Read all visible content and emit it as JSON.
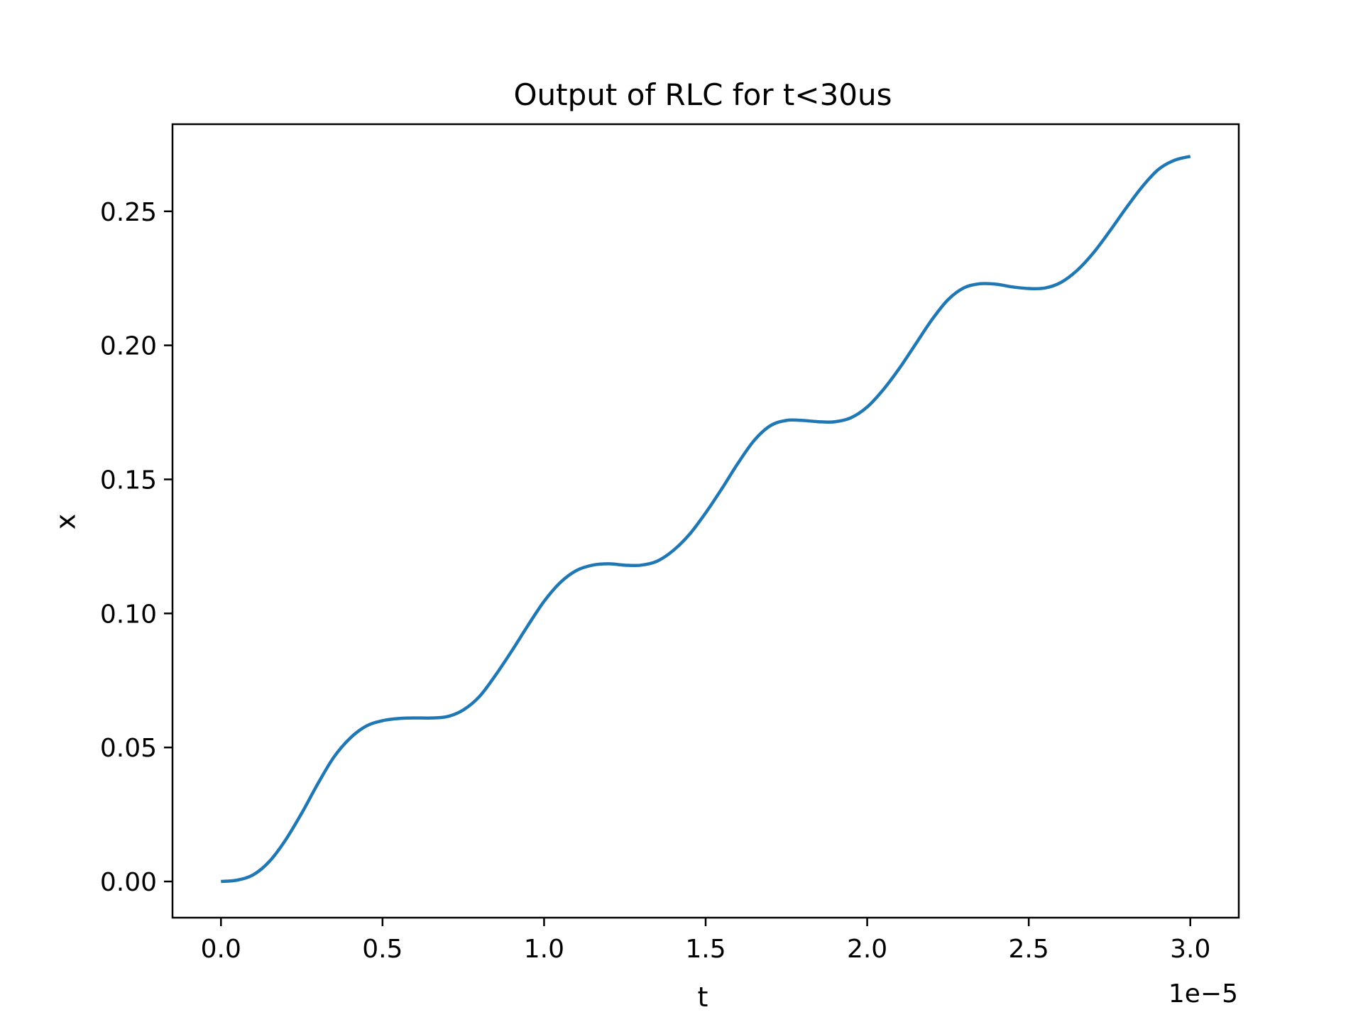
{
  "chart_data": {
    "type": "line",
    "title": "Output of RLC for t<30us",
    "xlabel": "t",
    "ylabel": "x",
    "x_offset_label": "1e−5",
    "xlim": [
      -0.15,
      3.15
    ],
    "ylim": [
      -0.0135,
      0.2825
    ],
    "grid": false,
    "legend": "none",
    "x_ticks": [
      {
        "value": 0.0,
        "label": "0.0"
      },
      {
        "value": 0.5,
        "label": "0.5"
      },
      {
        "value": 1.0,
        "label": "1.0"
      },
      {
        "value": 1.5,
        "label": "1.5"
      },
      {
        "value": 2.0,
        "label": "2.0"
      },
      {
        "value": 2.5,
        "label": "2.5"
      },
      {
        "value": 3.0,
        "label": "3.0"
      }
    ],
    "y_ticks": [
      {
        "value": 0.0,
        "label": "0.00"
      },
      {
        "value": 0.05,
        "label": "0.05"
      },
      {
        "value": 0.1,
        "label": "0.10"
      },
      {
        "value": 0.15,
        "label": "0.15"
      },
      {
        "value": 0.2,
        "label": "0.20"
      },
      {
        "value": 0.25,
        "label": "0.25"
      }
    ],
    "series": [
      {
        "color": "#1f77b4",
        "x": [
          0.0,
          0.05,
          0.1,
          0.15,
          0.2,
          0.25,
          0.3,
          0.35,
          0.4,
          0.45,
          0.5,
          0.55,
          0.6,
          0.65,
          0.7,
          0.75,
          0.8,
          0.85,
          0.9,
          0.95,
          1.0,
          1.05,
          1.1,
          1.15,
          1.2,
          1.25,
          1.3,
          1.35,
          1.4,
          1.45,
          1.5,
          1.55,
          1.6,
          1.65,
          1.7,
          1.75,
          1.8,
          1.85,
          1.9,
          1.95,
          2.0,
          2.05,
          2.1,
          2.15,
          2.2,
          2.25,
          2.3,
          2.35,
          2.4,
          2.45,
          2.5,
          2.55,
          2.6,
          2.65,
          2.7,
          2.75,
          2.8,
          2.85,
          2.9,
          2.95,
          3.0
        ],
        "y": [
          0.0,
          0.0005,
          0.0025,
          0.0075,
          0.0155,
          0.0255,
          0.0365,
          0.0465,
          0.0535,
          0.058,
          0.06,
          0.0608,
          0.061,
          0.061,
          0.0615,
          0.064,
          0.069,
          0.077,
          0.086,
          0.0955,
          0.1045,
          0.1115,
          0.116,
          0.118,
          0.1185,
          0.118,
          0.118,
          0.1195,
          0.1235,
          0.1295,
          0.1375,
          0.1465,
          0.156,
          0.1645,
          0.17,
          0.172,
          0.172,
          0.1715,
          0.1715,
          0.173,
          0.177,
          0.1835,
          0.1915,
          0.2005,
          0.2095,
          0.217,
          0.2215,
          0.223,
          0.2228,
          0.2218,
          0.2212,
          0.2214,
          0.2235,
          0.228,
          0.2345,
          0.2425,
          0.251,
          0.259,
          0.2655,
          0.269,
          0.2705
        ]
      }
    ]
  }
}
